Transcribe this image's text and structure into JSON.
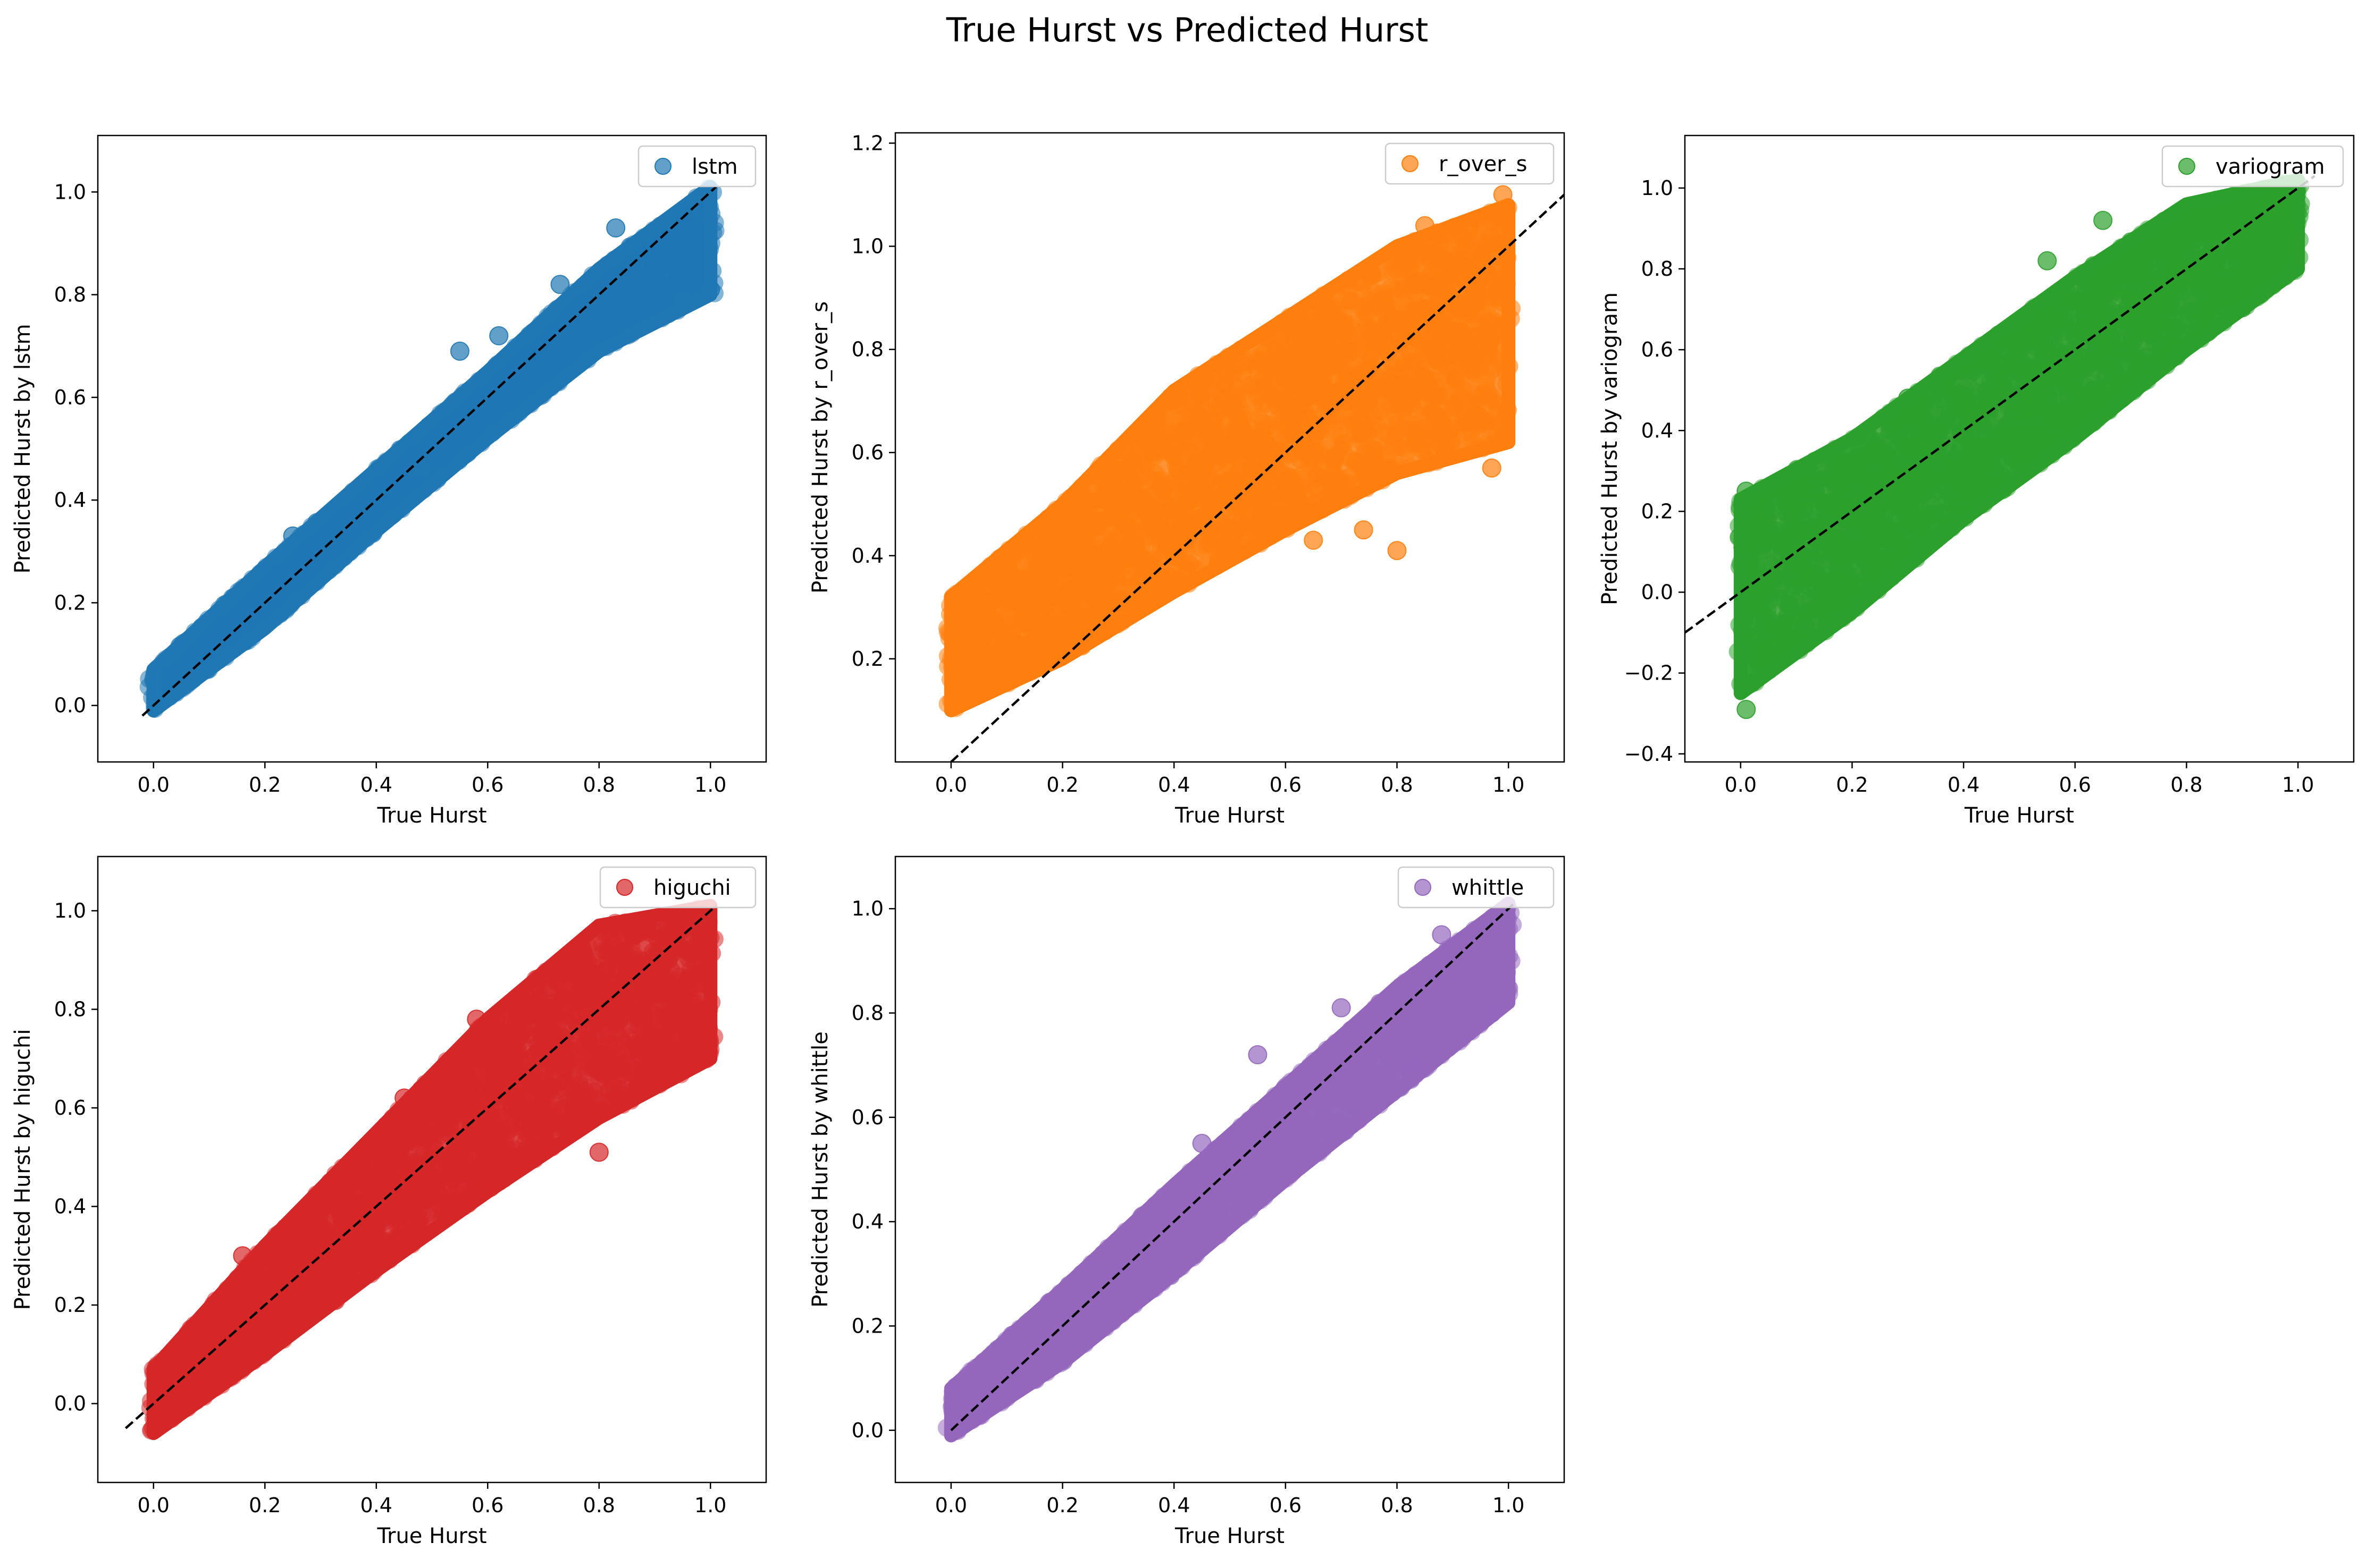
{
  "figure": {
    "title": "True Hurst vs Predicted Hurst"
  },
  "chart_data": [
    {
      "type": "scatter",
      "name": "lstm",
      "color": "#1f77b4",
      "xlabel": "True Hurst",
      "ylabel": "Predicted Hurst by lstm",
      "xlim": [
        -0.1,
        1.1
      ],
      "ylim": [
        -0.11,
        1.11
      ],
      "xticks": [
        0.0,
        0.2,
        0.4,
        0.6,
        0.8,
        1.0
      ],
      "yticks": [
        0.0,
        0.2,
        0.4,
        0.6,
        0.8,
        1.0
      ],
      "reference_line": [
        [
          -0.02,
          -0.02
        ],
        [
          1.01,
          1.01
        ]
      ],
      "band": {
        "x": [
          0.0,
          0.2,
          0.4,
          0.6,
          0.8,
          1.0
        ],
        "lower": [
          -0.01,
          0.15,
          0.34,
          0.52,
          0.69,
          0.8
        ],
        "upper": [
          0.07,
          0.27,
          0.46,
          0.65,
          0.85,
          1.01
        ]
      },
      "outliers": [
        [
          0.25,
          0.33
        ],
        [
          0.55,
          0.69
        ],
        [
          0.62,
          0.72
        ],
        [
          0.73,
          0.82
        ],
        [
          0.95,
          0.79
        ],
        [
          1.0,
          0.81
        ],
        [
          0.48,
          0.46
        ],
        [
          0.83,
          0.93
        ]
      ],
      "legend": {
        "label": "lstm",
        "position": "upper right"
      }
    },
    {
      "type": "scatter",
      "name": "r_over_s",
      "color": "#ff7f0e",
      "xlabel": "True Hurst",
      "ylabel": "Predicted Hurst by r_over_s",
      "xlim": [
        -0.1,
        1.1
      ],
      "ylim": [
        0.0,
        1.22
      ],
      "xticks": [
        0.0,
        0.2,
        0.4,
        0.6,
        0.8,
        1.0
      ],
      "yticks": [
        0.2,
        0.4,
        0.6,
        0.8,
        1.0,
        1.2
      ],
      "reference_line": [
        [
          0.0,
          0.0
        ],
        [
          1.1,
          1.1
        ]
      ],
      "band": {
        "x": [
          0.0,
          0.2,
          0.4,
          0.6,
          0.8,
          1.0
        ],
        "lower": [
          0.1,
          0.2,
          0.33,
          0.45,
          0.56,
          0.62
        ],
        "upper": [
          0.32,
          0.5,
          0.72,
          0.86,
          1.0,
          1.08
        ]
      },
      "outliers": [
        [
          0.65,
          0.43
        ],
        [
          0.74,
          0.45
        ],
        [
          0.8,
          0.41
        ],
        [
          0.97,
          0.57
        ],
        [
          0.48,
          0.39
        ],
        [
          0.62,
          0.85
        ],
        [
          0.85,
          1.04
        ],
        [
          0.99,
          1.1
        ]
      ],
      "legend": {
        "label": "r_over_s",
        "position": "upper right"
      }
    },
    {
      "type": "scatter",
      "name": "variogram",
      "color": "#2ca02c",
      "xlabel": "True Hurst",
      "ylabel": "Predicted Hurst by variogram",
      "xlim": [
        -0.1,
        1.1
      ],
      "ylim": [
        -0.42,
        1.13
      ],
      "xticks": [
        0.0,
        0.2,
        0.4,
        0.6,
        0.8,
        1.0
      ],
      "yticks": [
        -0.4,
        -0.2,
        0.0,
        0.2,
        0.4,
        0.6,
        0.8,
        1.0
      ],
      "reference_line": [
        [
          -0.1,
          -0.1
        ],
        [
          1.03,
          1.03
        ]
      ],
      "band": {
        "x": [
          0.0,
          0.2,
          0.4,
          0.6,
          0.8,
          1.0
        ],
        "lower": [
          -0.25,
          -0.05,
          0.18,
          0.38,
          0.6,
          0.8
        ],
        "upper": [
          0.23,
          0.38,
          0.58,
          0.78,
          0.96,
          1.02
        ]
      },
      "outliers": [
        [
          0.01,
          0.25
        ],
        [
          0.01,
          -0.29
        ],
        [
          0.73,
          0.58
        ],
        [
          0.78,
          0.65
        ],
        [
          0.94,
          0.85
        ],
        [
          0.55,
          0.82
        ],
        [
          0.3,
          0.48
        ],
        [
          0.65,
          0.92
        ]
      ],
      "legend": {
        "label": "variogram",
        "position": "upper right"
      }
    },
    {
      "type": "scatter",
      "name": "higuchi",
      "color": "#d62728",
      "xlabel": "True Hurst",
      "ylabel": "Predicted Hurst by higuchi",
      "xlim": [
        -0.1,
        1.1
      ],
      "ylim": [
        -0.16,
        1.11
      ],
      "xticks": [
        0.0,
        0.2,
        0.4,
        0.6,
        0.8,
        1.0
      ],
      "yticks": [
        0.0,
        0.2,
        0.4,
        0.6,
        0.8,
        1.0
      ],
      "reference_line": [
        [
          -0.05,
          -0.05
        ],
        [
          1.01,
          1.01
        ]
      ],
      "band": {
        "x": [
          0.0,
          0.2,
          0.4,
          0.6,
          0.8,
          1.0
        ],
        "lower": [
          -0.06,
          0.1,
          0.27,
          0.43,
          0.58,
          0.7
        ],
        "upper": [
          0.07,
          0.32,
          0.55,
          0.78,
          0.97,
          1.01
        ]
      },
      "outliers": [
        [
          0.8,
          0.51
        ],
        [
          0.75,
          0.55
        ],
        [
          0.16,
          0.3
        ],
        [
          0.45,
          0.62
        ],
        [
          0.99,
          0.7
        ],
        [
          0.92,
          0.7
        ],
        [
          0.7,
          0.58
        ],
        [
          0.58,
          0.78
        ]
      ],
      "legend": {
        "label": "higuchi",
        "position": "upper right"
      }
    },
    {
      "type": "scatter",
      "name": "whittle",
      "color": "#9467bd",
      "xlabel": "True Hurst",
      "ylabel": "Predicted Hurst by whittle",
      "xlim": [
        -0.1,
        1.1
      ],
      "ylim": [
        -0.1,
        1.1
      ],
      "xticks": [
        0.0,
        0.2,
        0.4,
        0.6,
        0.8,
        1.0
      ],
      "yticks": [
        0.0,
        0.2,
        0.4,
        0.6,
        0.8,
        1.0
      ],
      "reference_line": [
        [
          0.0,
          0.0
        ],
        [
          1.01,
          1.01
        ]
      ],
      "band": {
        "x": [
          0.0,
          0.2,
          0.4,
          0.6,
          0.8,
          1.0
        ],
        "lower": [
          -0.01,
          0.13,
          0.3,
          0.48,
          0.65,
          0.82
        ],
        "upper": [
          0.08,
          0.27,
          0.47,
          0.66,
          0.85,
          1.01
        ]
      },
      "outliers": [
        [
          0.55,
          0.72
        ],
        [
          0.7,
          0.81
        ],
        [
          0.97,
          0.8
        ],
        [
          0.83,
          0.7
        ],
        [
          0.3,
          0.31
        ],
        [
          0.12,
          0.08
        ],
        [
          0.45,
          0.55
        ],
        [
          0.88,
          0.95
        ]
      ],
      "legend": {
        "label": "whittle",
        "position": "upper right"
      }
    }
  ]
}
